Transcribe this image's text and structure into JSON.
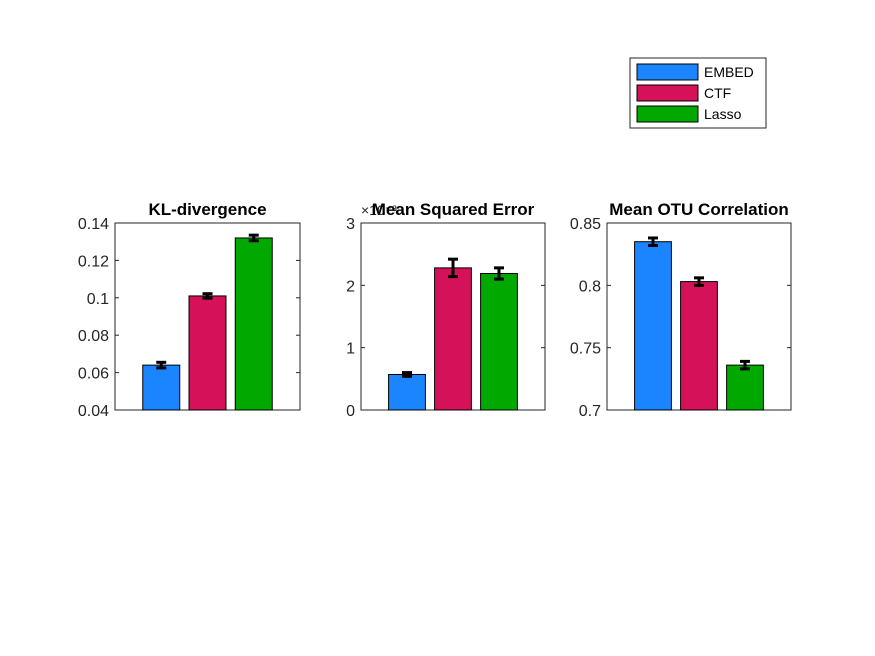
{
  "chart_data": [
    {
      "type": "bar",
      "title": "KL-divergence",
      "categories": [
        "EMBED",
        "CTF",
        "Lasso"
      ],
      "values": [
        0.064,
        0.101,
        0.132
      ],
      "errors": [
        0.0015,
        0.0012,
        0.0015
      ],
      "ylim": [
        0.04,
        0.14
      ],
      "yticks": [
        0.04,
        0.06,
        0.08,
        0.1,
        0.12,
        0.14
      ],
      "ytick_labels": [
        "0.04",
        "0.06",
        "0.08",
        "0.1",
        "0.12",
        "0.14"
      ],
      "xlabel": "",
      "ylabel": "",
      "grid": false
    },
    {
      "type": "bar",
      "title": "Mean Squared Error",
      "categories": [
        "EMBED",
        "CTF",
        "Lasso"
      ],
      "values": [
        0.57,
        2.28,
        2.19
      ],
      "errors": [
        0.03,
        0.14,
        0.09
      ],
      "ylim": [
        0,
        3
      ],
      "yticks": [
        0,
        1,
        2,
        3
      ],
      "ytick_labels": [
        "0",
        "1",
        "2",
        "3"
      ],
      "y_exponent": "×10⁻³",
      "xlabel": "",
      "ylabel": "",
      "grid": false
    },
    {
      "type": "bar",
      "title": "Mean OTU Correlation",
      "categories": [
        "EMBED",
        "CTF",
        "Lasso"
      ],
      "values": [
        0.835,
        0.803,
        0.736
      ],
      "errors": [
        0.003,
        0.003,
        0.003
      ],
      "ylim": [
        0.7,
        0.85
      ],
      "yticks": [
        0.7,
        0.75,
        0.8,
        0.85
      ],
      "ytick_labels": [
        "0.7",
        "0.75",
        "0.8",
        "0.85"
      ],
      "xlabel": "",
      "ylabel": "",
      "grid": false
    }
  ],
  "legend": {
    "placement": "top-right",
    "entries": [
      {
        "label": "EMBED",
        "color": "#1a85ff"
      },
      {
        "label": "CTF",
        "color": "#d41159"
      },
      {
        "label": "Lasso",
        "color": "#00a800"
      }
    ]
  },
  "colors": {
    "edge": "#000000",
    "axis": "#262626",
    "errorbar": "#000000"
  }
}
